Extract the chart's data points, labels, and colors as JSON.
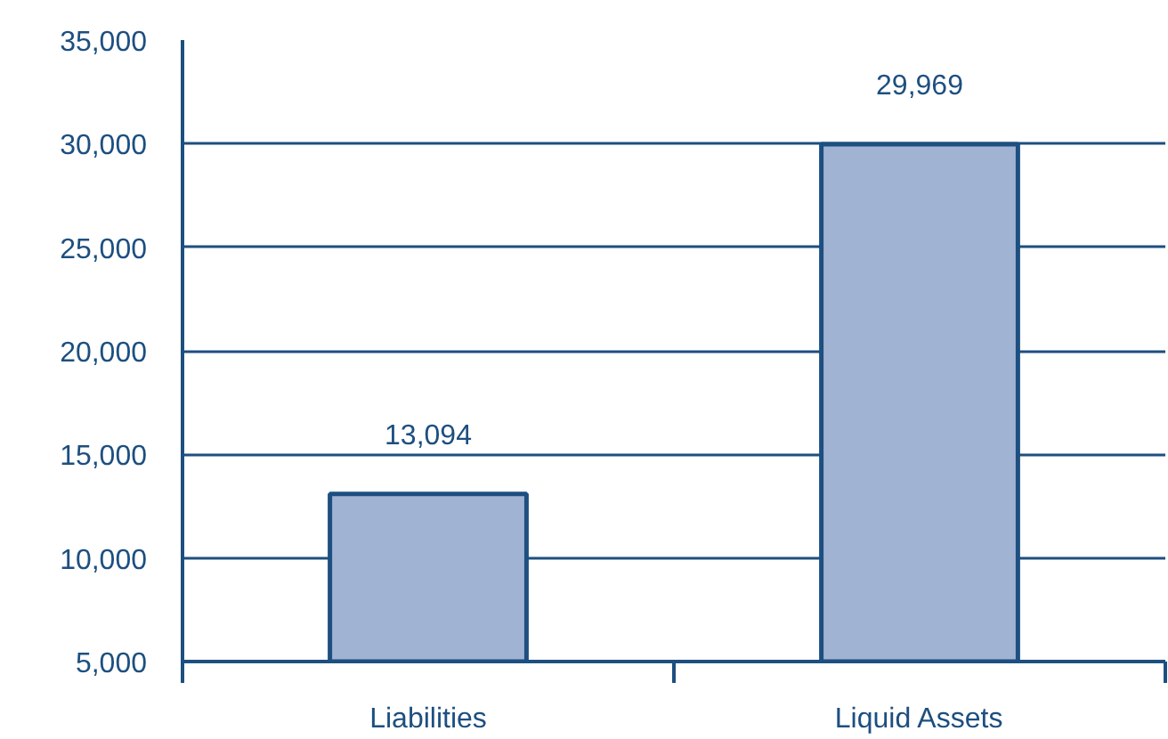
{
  "chart_data": {
    "type": "bar",
    "categories": [
      "Liabilities",
      "Liquid Assets"
    ],
    "values": [
      13094,
      29969
    ],
    "color": "#a1b3d3",
    "ylim": [
      5000,
      35000
    ],
    "yticks": [
      {
        "value": 5000,
        "label": "5,000"
      },
      {
        "value": 10000,
        "label": "10,000"
      },
      {
        "value": 15000,
        "label": "15,000"
      },
      {
        "value": 20000,
        "label": "20,000"
      },
      {
        "value": 25000,
        "label": "25,000"
      },
      {
        "value": 30000,
        "label": "30,000"
      },
      {
        "value": 35000,
        "label": "35,000"
      }
    ],
    "grid": "y",
    "value_labels": [
      "13,094",
      "29,969"
    ]
  }
}
